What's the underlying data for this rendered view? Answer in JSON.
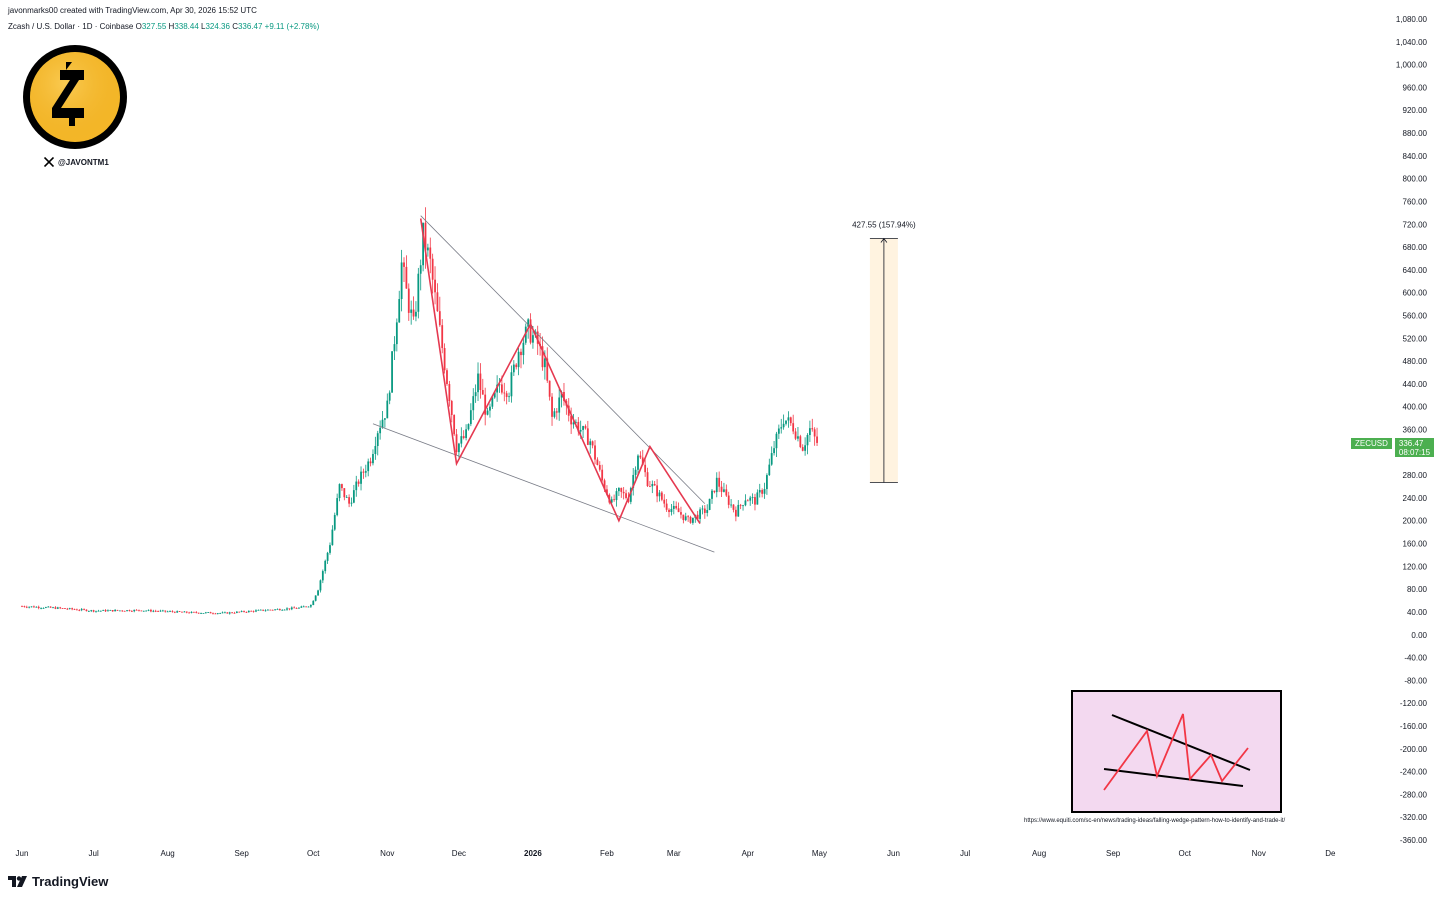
{
  "header": {
    "attribution": "javonmarks00 created with TradingView.com, Apr 30, 2026 15:52 UTC"
  },
  "legend": {
    "symbol_desc": "Zcash / U.S. Dollar · 1D · Coinbase",
    "open_label": "O",
    "open": "327.55",
    "high_label": "H",
    "high": "338.44",
    "low_label": "L",
    "low": "324.36",
    "close_label": "C",
    "close": "336.47",
    "change": "+9.11 (+2.78%)"
  },
  "logo_handle": "@JAVONTM1",
  "price_badge": {
    "symbol": "ZECUSD",
    "price": "336.47",
    "countdown": "08:07:15"
  },
  "measure_label": "427.55 (157.94%)",
  "source_url": "https://www.equiti.com/sc-en/news/trading-ideas/falling-wedge-pattern-how-to-identify-and-trade-it/",
  "brand": "TradingView",
  "colors": {
    "up": "#089981",
    "down": "#f23645",
    "pattern": "#e53950",
    "measure_fill": "#fff3e0",
    "inset_bg": "#f3d9f0",
    "badge": "#4caf50"
  },
  "chart_data": {
    "type": "candlestick",
    "yaxis": {
      "min": -360,
      "max": 1080,
      "step": 40,
      "tick_labels": [
        "1,080.00",
        "1,040.00",
        "1,000.00",
        "960.00",
        "920.00",
        "880.00",
        "840.00",
        "800.00",
        "760.00",
        "720.00",
        "680.00",
        "640.00",
        "600.00",
        "560.00",
        "520.00",
        "480.00",
        "440.00",
        "400.00",
        "360.00",
        "320.00",
        "280.00",
        "240.00",
        "200.00",
        "160.00",
        "120.00",
        "80.00",
        "40.00",
        "0.00",
        "-40.00",
        "-80.00",
        "-120.00",
        "-160.00",
        "-200.00",
        "-240.00",
        "-280.00",
        "-320.00",
        "-360.00"
      ]
    },
    "xaxis": {
      "start": "2025-06-01",
      "end": "2026-12-31",
      "ticks": [
        {
          "date": "2025-06-01",
          "label": "Jun"
        },
        {
          "date": "2025-07-01",
          "label": "Jul"
        },
        {
          "date": "2025-08-01",
          "label": "Aug"
        },
        {
          "date": "2025-09-01",
          "label": "Sep"
        },
        {
          "date": "2025-10-01",
          "label": "Oct"
        },
        {
          "date": "2025-11-01",
          "label": "Nov"
        },
        {
          "date": "2025-12-01",
          "label": "Dec"
        },
        {
          "date": "2026-01-01",
          "label": "2026"
        },
        {
          "date": "2026-02-01",
          "label": "Feb"
        },
        {
          "date": "2026-03-01",
          "label": "Mar"
        },
        {
          "date": "2026-04-01",
          "label": "Apr"
        },
        {
          "date": "2026-05-01",
          "label": "May"
        },
        {
          "date": "2026-06-01",
          "label": "Jun"
        },
        {
          "date": "2026-07-01",
          "label": "Jul"
        },
        {
          "date": "2026-08-01",
          "label": "Aug"
        },
        {
          "date": "2026-09-01",
          "label": "Sep"
        },
        {
          "date": "2026-10-01",
          "label": "Oct"
        },
        {
          "date": "2026-11-01",
          "label": "Nov"
        },
        {
          "date": "2026-12-01",
          "label": "De"
        }
      ]
    },
    "price_path": [
      [
        "2025-06-01",
        50
      ],
      [
        "2025-06-15",
        47
      ],
      [
        "2025-07-01",
        42
      ],
      [
        "2025-07-20",
        43
      ],
      [
        "2025-08-10",
        39
      ],
      [
        "2025-08-25",
        38
      ],
      [
        "2025-09-10",
        43
      ],
      [
        "2025-09-25",
        47
      ],
      [
        "2025-09-30",
        52
      ],
      [
        "2025-10-03",
        80
      ],
      [
        "2025-10-08",
        160
      ],
      [
        "2025-10-12",
        260
      ],
      [
        "2025-10-16",
        230
      ],
      [
        "2025-10-20",
        270
      ],
      [
        "2025-10-25",
        310
      ],
      [
        "2025-10-28",
        360
      ],
      [
        "2025-11-01",
        400
      ],
      [
        "2025-11-04",
        520
      ],
      [
        "2025-11-07",
        650
      ],
      [
        "2025-11-09",
        600
      ],
      [
        "2025-11-12",
        540
      ],
      [
        "2025-11-16",
        700
      ],
      [
        "2025-11-19",
        650
      ],
      [
        "2025-11-22",
        560
      ],
      [
        "2025-11-27",
        420
      ],
      [
        "2025-11-30",
        330
      ],
      [
        "2025-12-04",
        350
      ],
      [
        "2025-12-09",
        450
      ],
      [
        "2025-12-13",
        380
      ],
      [
        "2025-12-18",
        440
      ],
      [
        "2025-12-22",
        430
      ],
      [
        "2025-12-26",
        500
      ],
      [
        "2025-12-30",
        535
      ],
      [
        "2026-01-03",
        510
      ],
      [
        "2026-01-06",
        470
      ],
      [
        "2026-01-09",
        380
      ],
      [
        "2026-01-13",
        420
      ],
      [
        "2026-01-17",
        380
      ],
      [
        "2026-01-21",
        360
      ],
      [
        "2026-01-25",
        340
      ],
      [
        "2026-01-30",
        270
      ],
      [
        "2026-02-03",
        230
      ],
      [
        "2026-02-06",
        250
      ],
      [
        "2026-02-10",
        240
      ],
      [
        "2026-02-14",
        320
      ],
      [
        "2026-02-18",
        270
      ],
      [
        "2026-02-22",
        250
      ],
      [
        "2026-02-26",
        225
      ],
      [
        "2026-03-03",
        215
      ],
      [
        "2026-03-07",
        200
      ],
      [
        "2026-03-11",
        210
      ],
      [
        "2026-03-15",
        220
      ],
      [
        "2026-03-19",
        270
      ],
      [
        "2026-03-23",
        240
      ],
      [
        "2026-03-27",
        215
      ],
      [
        "2026-03-31",
        240
      ],
      [
        "2026-04-04",
        235
      ],
      [
        "2026-04-08",
        260
      ],
      [
        "2026-04-12",
        330
      ],
      [
        "2026-04-16",
        380
      ],
      [
        "2026-04-20",
        365
      ],
      [
        "2026-04-24",
        330
      ],
      [
        "2026-04-27",
        360
      ],
      [
        "2026-04-30",
        336
      ]
    ],
    "wedge_upper": [
      [
        "2025-11-15",
        735
      ],
      [
        "2026-03-14",
        230
      ]
    ],
    "wedge_lower": [
      [
        "2025-10-26",
        370
      ],
      [
        "2026-03-18",
        145
      ]
    ],
    "zigzag": [
      [
        "2025-11-15",
        730
      ],
      [
        "2025-11-30",
        300
      ],
      [
        "2025-12-31",
        545
      ],
      [
        "2026-02-06",
        200
      ],
      [
        "2026-02-19",
        330
      ],
      [
        "2026-03-12",
        195
      ]
    ],
    "measure": {
      "date": "2026-05-28",
      "from": 267,
      "to": 695,
      "label": "427.55 (157.94%)"
    },
    "last_price": 336.47
  }
}
